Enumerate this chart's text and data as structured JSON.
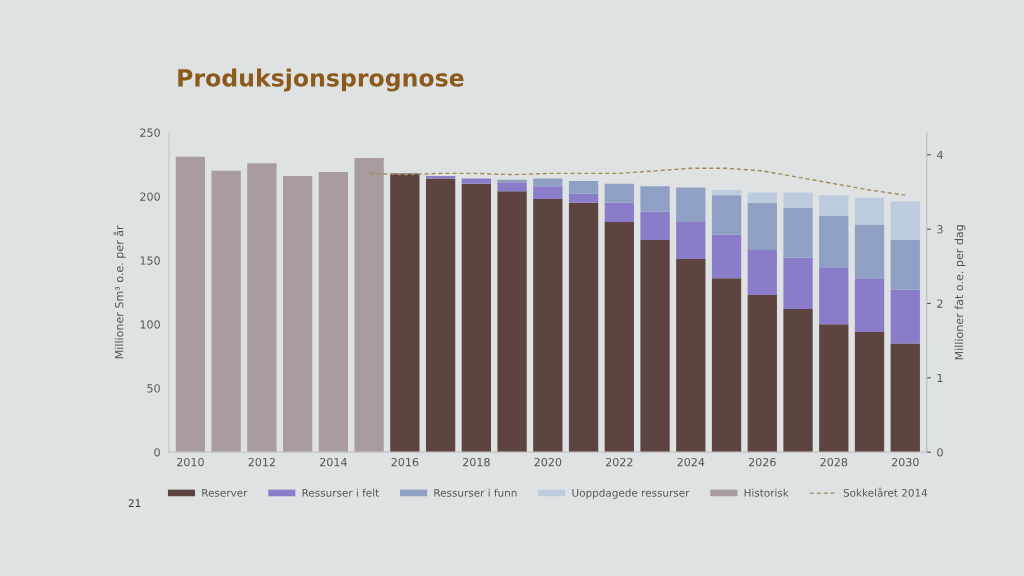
{
  "chart_data": {
    "type": "bar",
    "title": "Produksjonsprognose",
    "ylabel": "Millioner Sm³ o.e. per år",
    "y2label": "Millioner fat o.e. per dag",
    "categories": [
      "2010",
      null,
      "2012",
      null,
      "2014",
      null,
      "2016",
      null,
      "2018",
      null,
      "2020",
      null,
      "2022",
      null,
      "2024",
      null,
      "2026",
      null,
      "2028",
      null,
      "2030"
    ],
    "stacked": true,
    "series": [
      {
        "name": "Reserver",
        "color": "#5e4440",
        "values": [
          null,
          null,
          null,
          null,
          null,
          null,
          218,
          214,
          210,
          204,
          198,
          195,
          180,
          166,
          151,
          136,
          123,
          112,
          100,
          94,
          85
        ]
      },
      {
        "name": "Ressurser i felt",
        "color": "#8a7cc8",
        "values": [
          null,
          null,
          null,
          null,
          null,
          null,
          null,
          2,
          4,
          7,
          10,
          7,
          15,
          22,
          29,
          34,
          35,
          40,
          44,
          42,
          42
        ]
      },
      {
        "name": "Ressurser i funn",
        "color": "#8fa0c4",
        "values": [
          null,
          null,
          null,
          null,
          null,
          null,
          null,
          null,
          null,
          2,
          6,
          10,
          15,
          20,
          27,
          31,
          37,
          39,
          41,
          42,
          39
        ]
      },
      {
        "name": "Uoppdagede ressurser",
        "color": "#bccbdd",
        "values": [
          null,
          null,
          null,
          null,
          null,
          null,
          null,
          null,
          null,
          null,
          null,
          null,
          null,
          null,
          null,
          4,
          8,
          12,
          16,
          21,
          30
        ]
      },
      {
        "name": "Historisk",
        "color": "#a89c9e",
        "values": [
          231,
          220,
          226,
          216,
          219,
          230,
          null,
          null,
          null,
          null,
          null,
          null,
          null,
          null,
          null,
          null,
          null,
          null,
          null,
          null,
          null
        ]
      },
      {
        "name": "Sokkelåret 2014",
        "type": "line",
        "line_style": "dashed",
        "color": "#a08c5a",
        "values": [
          null,
          null,
          null,
          null,
          null,
          218,
          217,
          218,
          218,
          217,
          218,
          218,
          218,
          220,
          222,
          222,
          220,
          215,
          210,
          205,
          201
        ]
      }
    ],
    "ylim": [
      0,
      250
    ],
    "yticks": [
      0,
      50,
      100,
      150,
      200,
      250
    ],
    "y2lim": [
      0,
      4.3
    ],
    "y2ticks": [
      0,
      1,
      2,
      3,
      4
    ],
    "legend": "bottom",
    "annotations": [
      "21"
    ]
  }
}
